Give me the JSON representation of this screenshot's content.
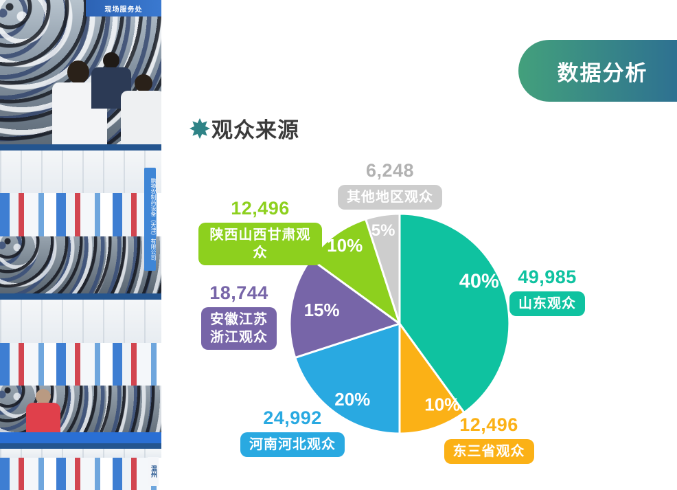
{
  "banner": {
    "label": "数据分析",
    "gradient_from": "#43A07C",
    "gradient_to": "#2E7191"
  },
  "section": {
    "title": "观众来源",
    "icon": "star-burst-icon",
    "icon_color": "#2F8386"
  },
  "chart_data": {
    "type": "pie",
    "title": "观众来源",
    "start_angle_deg": 0,
    "direction": "clockwise",
    "slices": [
      {
        "label": "山东观众",
        "value": 49985,
        "value_text": "49,985",
        "percent": 40,
        "percent_text": "40%",
        "color": "#0FC2A0"
      },
      {
        "label": "东三省观众",
        "value": 12496,
        "value_text": "12,496",
        "percent": 10,
        "percent_text": "10%",
        "color": "#FBB116"
      },
      {
        "label": "河南河北观众",
        "value": 24992,
        "value_text": "24,992",
        "percent": 20,
        "percent_text": "20%",
        "color": "#29A9E1"
      },
      {
        "label": "安徽江苏浙江观众",
        "label_lines": [
          "安徽江苏",
          "浙江观众"
        ],
        "value": 18744,
        "value_text": "18,744",
        "percent": 15,
        "percent_text": "15%",
        "color": "#7765A8"
      },
      {
        "label": "陕西山西甘肃观众",
        "value": 12496,
        "value_text": "12,496",
        "percent": 10,
        "percent_text": "10%",
        "color": "#8DD01E"
      },
      {
        "label": "其他地区观众",
        "value": 6248,
        "value_text": "6,248",
        "percent": 5,
        "percent_text": "5%",
        "color": "#CDCDCD",
        "number_color": "#B2B2B2"
      }
    ],
    "legend_position": "around-slices",
    "layout": {
      "label_angles_deg": [
        62,
        152,
        212,
        280,
        325,
        350
      ],
      "label_radius_fraction": [
        0.82,
        0.83,
        0.81,
        0.72,
        0.87,
        0.86
      ],
      "percent_font_sizes": [
        29,
        26,
        26,
        26,
        26,
        24
      ]
    }
  },
  "photos": [
    {
      "name": "entrance-crowd-photo",
      "sign_text": "现场服务处"
    },
    {
      "name": "hall-crowd-photo-1",
      "banner_text": "鹏神农制药设备（天津）有限公司"
    },
    {
      "name": "hall-crowd-photo-2"
    },
    {
      "name": "hall-booth-photo",
      "sign_text": "温州"
    }
  ]
}
